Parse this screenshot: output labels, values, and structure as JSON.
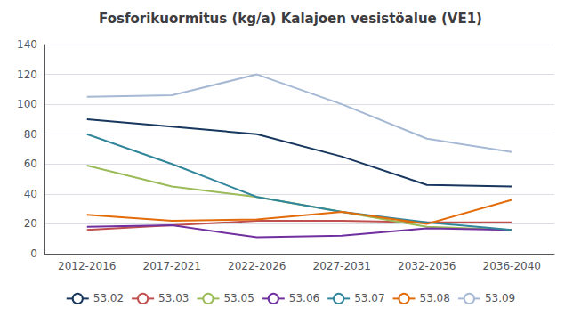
{
  "chart_data": {
    "type": "line",
    "title": "Fosforikuormitus (kg/a) Kalajoen vesistöalue (VE1)",
    "categories": [
      "2012-2016",
      "2017-2021",
      "2022-2026",
      "2027-2031",
      "2032-2036",
      "2036-2040"
    ],
    "series": [
      {
        "name": "53.02",
        "color": "#17375E",
        "values": [
          90,
          85,
          80,
          65,
          46,
          45
        ]
      },
      {
        "name": "53.03",
        "color": "#C0504D",
        "values": [
          16,
          19,
          22,
          22,
          21,
          21
        ]
      },
      {
        "name": "53.05",
        "color": "#9BBB59",
        "values": [
          59,
          45,
          38,
          28,
          18,
          16
        ]
      },
      {
        "name": "53.06",
        "color": "#7030A0",
        "values": [
          18,
          19,
          11,
          12,
          17,
          16
        ]
      },
      {
        "name": "53.07",
        "color": "#31869B",
        "values": [
          80,
          60,
          38,
          28,
          21,
          16
        ]
      },
      {
        "name": "53.08",
        "color": "#E26B0A",
        "values": [
          26,
          22,
          23,
          28,
          20,
          36
        ]
      },
      {
        "name": "53.09",
        "color": "#A6B9D4",
        "values": [
          105,
          106,
          120,
          100,
          77,
          68
        ]
      }
    ],
    "ylim": [
      0,
      140
    ],
    "yticks": [
      0,
      20,
      40,
      60,
      80,
      100,
      120,
      140
    ],
    "grid": true,
    "legend": "bottom"
  }
}
